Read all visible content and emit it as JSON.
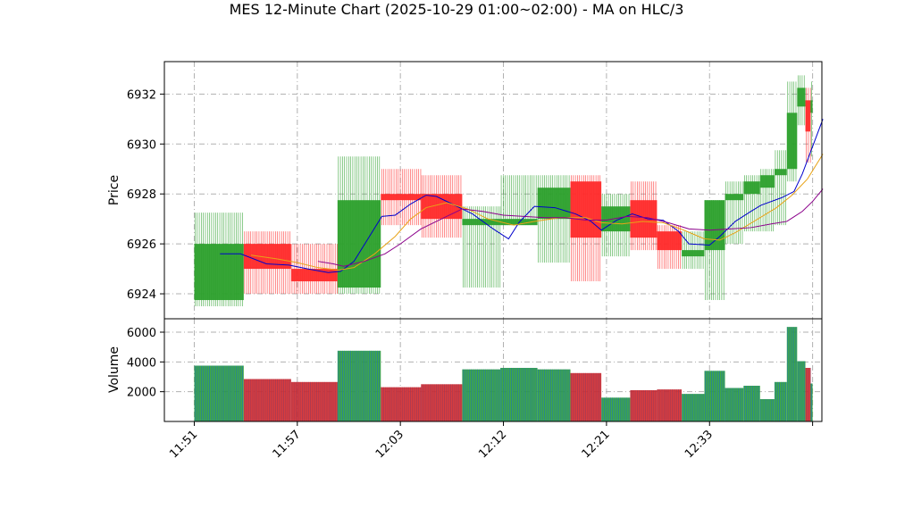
{
  "chart_data": {
    "type": "candlestick",
    "title": "MES 12-Minute Chart (2025-10-29 01:00~02:00) - MA on HLC/3",
    "price_panel": {
      "ylabel": "Price",
      "ylim": [
        6923.0,
        6933.3
      ],
      "yticks": [
        6924,
        6926,
        6928,
        6930,
        6932
      ]
    },
    "volume_panel": {
      "ylabel": "Volume",
      "ylim": [
        0,
        6900
      ],
      "yticks": [
        2000,
        4000,
        6000
      ]
    },
    "xlim": [
      -2.9,
      60.9
    ],
    "xticks": [
      {
        "index": 0,
        "label": "11:51"
      },
      {
        "index": 10,
        "label": "11:57"
      },
      {
        "index": 20,
        "label": "12:03"
      },
      {
        "index": 30,
        "label": "12:12"
      },
      {
        "index": 40,
        "label": "12:21"
      },
      {
        "index": 50,
        "label": "12:33"
      },
      {
        "index": 60,
        "label": ""
      }
    ],
    "grid": true,
    "colors": {
      "up": "#2ca02c",
      "down": "#ff2a2a",
      "volume_up": "#1f77b4",
      "volume_down": "#9a3a5a",
      "ma_fast": "#0000cc",
      "ma_mid": "#e8a317",
      "ma_slow": "#8b008b",
      "grid": "#b0b0b0"
    },
    "bars": [
      {
        "start": 0,
        "end": 4.8,
        "open": 6923.75,
        "high": 6927.25,
        "low": 6923.5,
        "close": 6926.0,
        "volume": 3750
      },
      {
        "start": 4.8,
        "end": 9.4,
        "open": 6926.0,
        "high": 6926.5,
        "low": 6924.0,
        "close": 6925.0,
        "volume": 2850
      },
      {
        "start": 9.4,
        "end": 13.9,
        "open": 6925.0,
        "high": 6926.0,
        "low": 6924.0,
        "close": 6924.5,
        "volume": 2650
      },
      {
        "start": 13.9,
        "end": 18.1,
        "open": 6924.25,
        "high": 6929.5,
        "low": 6924.0,
        "close": 6927.75,
        "volume": 4750
      },
      {
        "start": 18.1,
        "end": 22.0,
        "open": 6928.0,
        "high": 6929.0,
        "low": 6926.75,
        "close": 6927.75,
        "volume": 2300
      },
      {
        "start": 22.0,
        "end": 26.0,
        "open": 6928.0,
        "high": 6928.75,
        "low": 6926.25,
        "close": 6927.0,
        "volume": 2500
      },
      {
        "start": 26.0,
        "end": 29.7,
        "open": 6926.75,
        "high": 6927.5,
        "low": 6924.25,
        "close": 6927.0,
        "volume": 3500
      },
      {
        "start": 29.7,
        "end": 33.3,
        "open": 6926.75,
        "high": 6928.75,
        "low": 6926.75,
        "close": 6927.0,
        "volume": 3600
      },
      {
        "start": 33.3,
        "end": 36.5,
        "open": 6927.0,
        "high": 6928.75,
        "low": 6925.25,
        "close": 6928.25,
        "volume": 3500
      },
      {
        "start": 36.5,
        "end": 39.5,
        "open": 6928.5,
        "high": 6928.75,
        "low": 6924.5,
        "close": 6926.25,
        "volume": 3250
      },
      {
        "start": 39.5,
        "end": 42.3,
        "open": 6926.5,
        "high": 6928.0,
        "low": 6925.5,
        "close": 6927.5,
        "volume": 1600
      },
      {
        "start": 42.3,
        "end": 44.9,
        "open": 6927.75,
        "high": 6928.5,
        "low": 6925.75,
        "close": 6926.25,
        "volume": 2100
      },
      {
        "start": 44.9,
        "end": 47.3,
        "open": 6926.5,
        "high": 6926.75,
        "low": 6925.0,
        "close": 6925.75,
        "volume": 2150
      },
      {
        "start": 47.3,
        "end": 49.5,
        "open": 6925.5,
        "high": 6926.5,
        "low": 6925.0,
        "close": 6925.75,
        "volume": 1850
      },
      {
        "start": 49.5,
        "end": 51.5,
        "open": 6925.75,
        "high": 6927.75,
        "low": 6923.75,
        "close": 6927.75,
        "volume": 3400
      },
      {
        "start": 51.5,
        "end": 53.3,
        "open": 6927.75,
        "high": 6928.5,
        "low": 6926.0,
        "close": 6928.0,
        "volume": 2250
      },
      {
        "start": 53.3,
        "end": 54.9,
        "open": 6928.0,
        "high": 6928.75,
        "low": 6926.5,
        "close": 6928.5,
        "volume": 2400
      },
      {
        "start": 54.9,
        "end": 56.3,
        "open": 6928.25,
        "high": 6929.0,
        "low": 6926.5,
        "close": 6928.75,
        "volume": 1500
      },
      {
        "start": 56.3,
        "end": 57.5,
        "open": 6928.75,
        "high": 6929.75,
        "low": 6926.75,
        "close": 6929.0,
        "volume": 2650
      },
      {
        "start": 57.5,
        "end": 58.5,
        "open": 6929.0,
        "high": 6932.5,
        "low": 6928.5,
        "close": 6931.25,
        "volume": 6350
      },
      {
        "start": 58.5,
        "end": 59.3,
        "open": 6931.5,
        "high": 6932.75,
        "low": 6930.75,
        "close": 6932.25,
        "volume": 4050
      },
      {
        "start": 59.3,
        "end": 59.8,
        "open": 6931.75,
        "high": 6932.25,
        "low": 6929.25,
        "close": 6930.5,
        "volume": 3600
      },
      {
        "start": 59.8,
        "end": 60.0,
        "open": 6931.25,
        "high": 6932.5,
        "low": 6929.5,
        "close": 6931.75,
        "volume": 2550
      }
    ],
    "moving_averages": [
      {
        "color_key": "ma_fast",
        "points": [
          [
            2.5,
            6925.6
          ],
          [
            4.5,
            6925.6
          ],
          [
            7,
            6925.2
          ],
          [
            9.2,
            6925.15
          ],
          [
            11,
            6925.0
          ],
          [
            13,
            6924.85
          ],
          [
            14.2,
            6924.9
          ],
          [
            15.5,
            6925.3
          ],
          [
            17,
            6926.3
          ],
          [
            18.2,
            6927.1
          ],
          [
            19.5,
            6927.15
          ],
          [
            21,
            6927.6
          ],
          [
            22.5,
            6927.95
          ],
          [
            23.5,
            6927.9
          ],
          [
            25,
            6927.6
          ],
          [
            27,
            6927.2
          ],
          [
            29,
            6926.6
          ],
          [
            30.5,
            6926.2
          ],
          [
            31.5,
            6926.85
          ],
          [
            33,
            6927.5
          ],
          [
            35,
            6927.45
          ],
          [
            37,
            6927.2
          ],
          [
            38.5,
            6926.9
          ],
          [
            39.5,
            6926.55
          ],
          [
            41,
            6926.95
          ],
          [
            42.5,
            6927.2
          ],
          [
            44,
            6927.0
          ],
          [
            45.5,
            6926.95
          ],
          [
            47,
            6926.5
          ],
          [
            48,
            6926.0
          ],
          [
            50,
            6925.95
          ],
          [
            51,
            6926.3
          ],
          [
            52.5,
            6926.9
          ],
          [
            54,
            6927.3
          ],
          [
            55,
            6927.55
          ],
          [
            57,
            6927.85
          ],
          [
            58.2,
            6928.1
          ],
          [
            59,
            6928.8
          ],
          [
            60,
            6929.9
          ],
          [
            61,
            6931.0
          ]
        ]
      },
      {
        "color_key": "ma_mid",
        "points": [
          [
            5.5,
            6925.55
          ],
          [
            8,
            6925.4
          ],
          [
            10,
            6925.25
          ],
          [
            12,
            6925.05
          ],
          [
            14,
            6924.95
          ],
          [
            15.5,
            6925.05
          ],
          [
            17.5,
            6925.6
          ],
          [
            19.5,
            6926.3
          ],
          [
            21,
            6927.0
          ],
          [
            22.5,
            6927.45
          ],
          [
            24.5,
            6927.65
          ],
          [
            26.5,
            6927.4
          ],
          [
            28.5,
            6927.0
          ],
          [
            31,
            6926.75
          ],
          [
            33,
            6926.9
          ],
          [
            35.5,
            6927.05
          ],
          [
            38,
            6927.05
          ],
          [
            39.5,
            6926.85
          ],
          [
            41.5,
            6926.8
          ],
          [
            43.5,
            6926.9
          ],
          [
            45.5,
            6926.85
          ],
          [
            47.5,
            6926.55
          ],
          [
            49.5,
            6926.2
          ],
          [
            51,
            6926.15
          ],
          [
            52.5,
            6926.45
          ],
          [
            54.5,
            6926.95
          ],
          [
            56.5,
            6927.45
          ],
          [
            58,
            6927.95
          ],
          [
            59.5,
            6928.6
          ],
          [
            61,
            6929.6
          ]
        ]
      },
      {
        "color_key": "ma_slow",
        "points": [
          [
            12,
            6925.3
          ],
          [
            13.5,
            6925.2
          ],
          [
            14.5,
            6925.1
          ],
          [
            16.5,
            6925.3
          ],
          [
            18.5,
            6925.6
          ],
          [
            20,
            6926.0
          ],
          [
            22,
            6926.6
          ],
          [
            24.5,
            6927.1
          ],
          [
            26,
            6927.4
          ],
          [
            28,
            6927.3
          ],
          [
            30,
            6927.15
          ],
          [
            32,
            6927.1
          ],
          [
            34,
            6927.05
          ],
          [
            36,
            6927.05
          ],
          [
            38,
            6926.95
          ],
          [
            40,
            6926.95
          ],
          [
            42,
            6927.1
          ],
          [
            44,
            6927.05
          ],
          [
            46,
            6926.85
          ],
          [
            48,
            6926.6
          ],
          [
            50,
            6926.55
          ],
          [
            52,
            6926.6
          ],
          [
            54,
            6926.65
          ],
          [
            56,
            6926.8
          ],
          [
            57.5,
            6926.9
          ],
          [
            59,
            6927.3
          ],
          [
            60,
            6927.7
          ],
          [
            61,
            6928.2
          ]
        ]
      }
    ]
  }
}
